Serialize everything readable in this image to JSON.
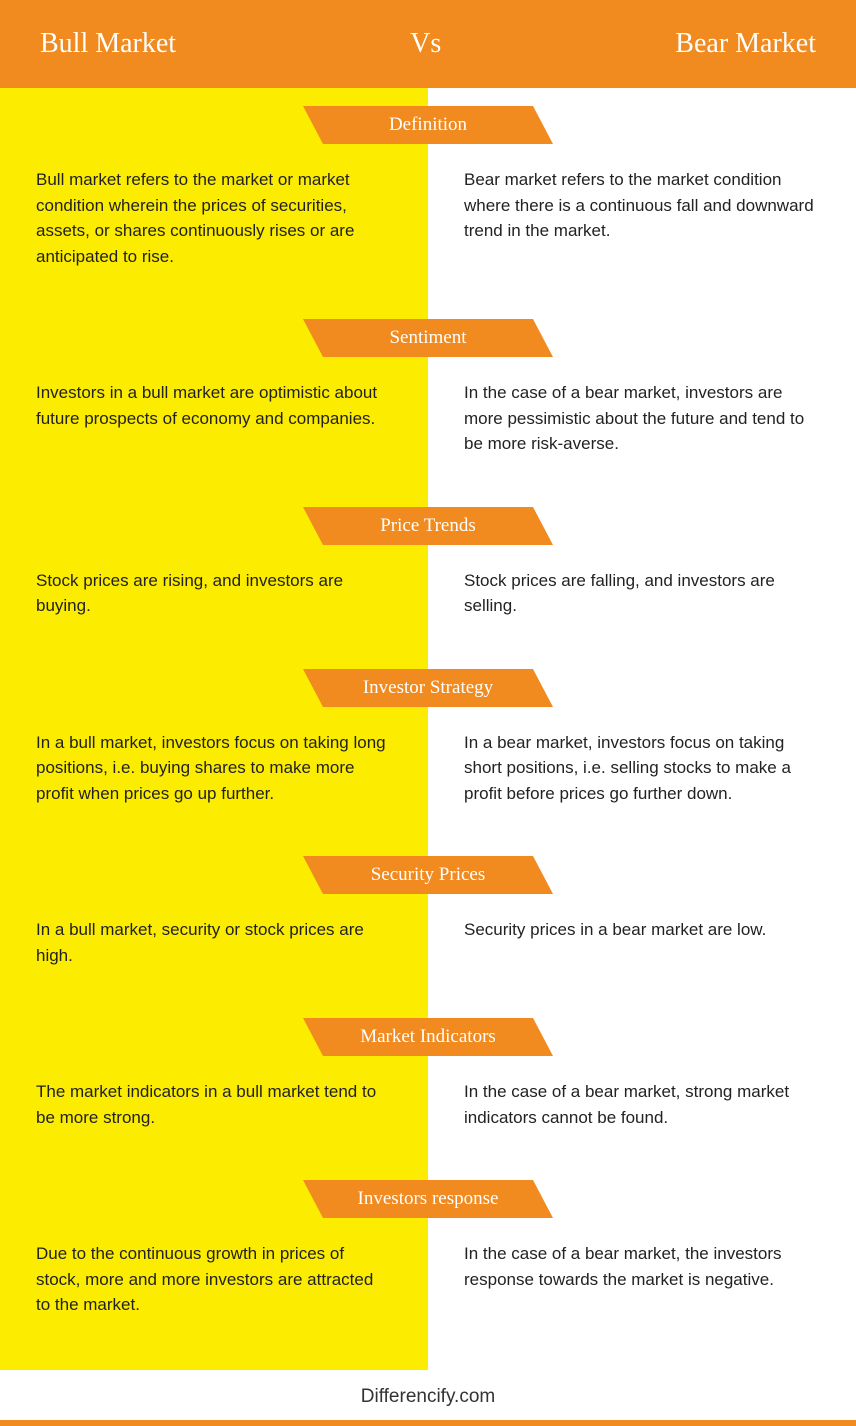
{
  "colors": {
    "header_bg": "#f18a1f",
    "ribbon_bg": "#f18a1f",
    "left_bg": "#fcec00",
    "right_bg": "#ffffff",
    "text": "#222222",
    "header_text": "#ffffff",
    "bottom_bar": "#f18a1f"
  },
  "header": {
    "left": "Bull Market",
    "vs": "Vs",
    "right": "Bear Market"
  },
  "sections": [
    {
      "title": "Definition",
      "left": "Bull market refers to the market or market condition wherein the prices of securities, assets, or shares continuously rises or are anticipated to rise.",
      "right": "Bear market refers to the market condition where there is a continuous fall and downward trend in the market."
    },
    {
      "title": "Sentiment",
      "left": "Investors in a bull market are optimistic about future prospects of economy and companies.",
      "right": "In the case of a bear market, investors are more pessimistic about the future and tend to be more risk-averse."
    },
    {
      "title": "Price Trends",
      "left": "Stock prices are rising, and investors are buying.",
      "right": "Stock prices are falling, and investors are selling."
    },
    {
      "title": "Investor Strategy",
      "left": "In a bull market, investors focus on taking long positions, i.e. buying shares to make more profit when prices go up further.",
      "right": "In a bear market, investors focus on taking short positions, i.e. selling stocks to make a profit before prices go further down."
    },
    {
      "title": "Security Prices",
      "left": "In a bull market, security or stock prices are high.",
      "right": "Security prices in a bear market are low."
    },
    {
      "title": "Market Indicators",
      "left": "The market indicators in a bull market tend to be more strong.",
      "right": "In the case of a bear market, strong market indicators cannot be found."
    },
    {
      "title": "Investors response",
      "left": "Due to the continuous growth in prices of stock, more and more investors are attracted to the market.",
      "right": "In the case of a bear market, the investors response towards the market is negative."
    }
  ],
  "footer": "Differencify.com"
}
